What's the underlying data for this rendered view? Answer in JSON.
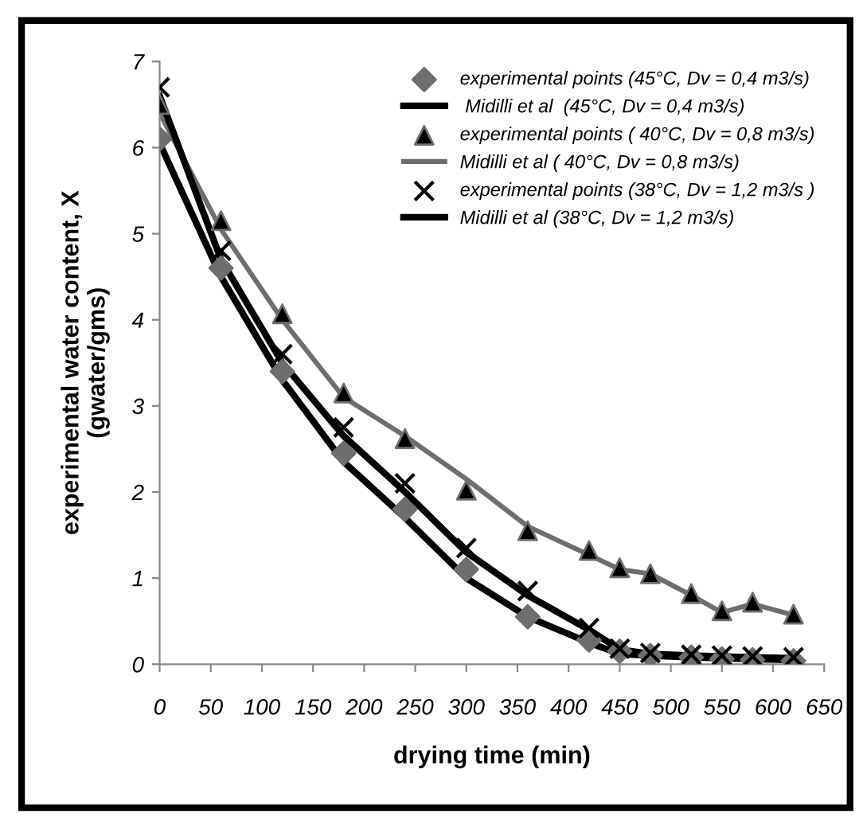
{
  "chart_data": {
    "type": "line",
    "xlabel": "drying time (min)",
    "ylabel": "experimental water content, X\n(gwater/gms)",
    "x": [
      0,
      60,
      120,
      180,
      240,
      300,
      360,
      420,
      450,
      480,
      520,
      550,
      580,
      620
    ],
    "series": [
      {
        "name": "experimental points (45°C, Dv = 0,4 m3/s)",
        "type": "scatter",
        "marker": "diamond",
        "color": "#6e6e6e",
        "values": [
          6.1,
          4.6,
          3.4,
          2.45,
          1.8,
          1.1,
          0.55,
          0.28,
          0.15,
          0.1,
          0.08,
          0.06,
          0.05,
          0.04
        ]
      },
      {
        "name": " Midilli et al  (45°C, Dv = 0,4 m3/s)",
        "marker": "none",
        "line_style": "solid",
        "color": "#000000",
        "values": [
          6.05,
          4.5,
          3.3,
          2.35,
          1.7,
          1.0,
          0.55,
          0.25,
          0.12,
          0.1,
          0.08,
          0.07,
          0.06,
          0.05
        ]
      },
      {
        "name": "experimental points ( 40°C, Dv = 0,8 m3/s)",
        "type": "scatter",
        "marker": "triangle",
        "color": "#000000",
        "values": [
          6.5,
          5.15,
          4.07,
          3.15,
          2.62,
          2.02,
          1.55,
          1.32,
          1.12,
          1.05,
          0.82,
          0.62,
          0.72,
          0.58
        ]
      },
      {
        "name": "Midilli et al ( 40°C, Dv = 0,8 m3/s)",
        "marker": "none",
        "line_style": "solid",
        "color": "#6e6e6e",
        "values": [
          6.4,
          5.05,
          4.0,
          3.1,
          2.65,
          2.15,
          1.6,
          1.27,
          1.1,
          1.05,
          0.8,
          0.6,
          0.7,
          0.57
        ]
      },
      {
        "name": "experimental points (38°C, Dv = 1,2 m3/s )",
        "type": "scatter",
        "marker": "cross",
        "color": "#000000",
        "values": [
          6.7,
          4.8,
          3.6,
          2.75,
          2.1,
          1.35,
          0.85,
          0.42,
          0.18,
          0.13,
          0.11,
          0.1,
          0.09,
          0.08
        ]
      },
      {
        "name": "Midilli et al (38°C, Dv = 1,2 m3/s)",
        "marker": "none",
        "line_style": "solid",
        "color": "#000000",
        "values": [
          6.6,
          4.7,
          3.5,
          2.65,
          2.0,
          1.3,
          0.8,
          0.4,
          0.17,
          0.12,
          0.1,
          0.09,
          0.08,
          0.07
        ]
      }
    ],
    "xlim": [
      0,
      650
    ],
    "xticks": [
      0,
      50,
      100,
      150,
      200,
      250,
      300,
      350,
      400,
      450,
      500,
      550,
      600,
      650
    ],
    "ylim": [
      0,
      7
    ],
    "yticks": [
      0,
      1,
      2,
      3,
      4,
      5,
      6,
      7
    ],
    "grid": false,
    "legend": "top right"
  }
}
